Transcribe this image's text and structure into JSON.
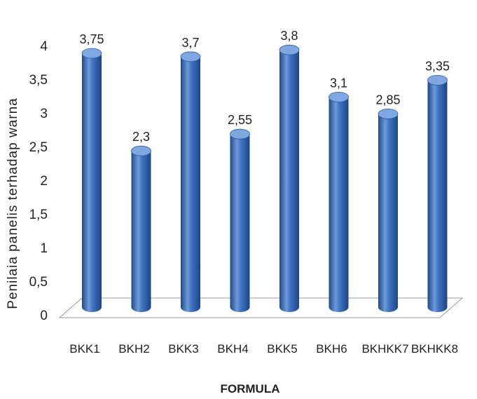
{
  "chart_data": {
    "type": "bar",
    "title": "",
    "xlabel": "FORMULA",
    "ylabel": "Penilaia panelis terhadap warna",
    "categories": [
      "BKK1",
      "BKH2",
      "BKK3",
      "BKH4",
      "BKK5",
      "BKH6",
      "BKHKK7",
      "BKHKK8"
    ],
    "values": [
      3.75,
      2.3,
      3.7,
      2.55,
      3.8,
      3.1,
      2.85,
      3.35
    ],
    "value_labels": [
      "3,75",
      "2,3",
      "3,7",
      "2,55",
      "3,8",
      "3,1",
      "2,85",
      "3,35"
    ],
    "ylim": [
      0,
      4
    ],
    "yticks": [
      0,
      0.5,
      1,
      1.5,
      2,
      2.5,
      3,
      3.5,
      4
    ],
    "ytick_labels": [
      "0",
      "0,5",
      "1",
      "1,5",
      "2",
      "2,5",
      "3",
      "3,5",
      "4"
    ],
    "grid": false,
    "bar_style": "3d-cylinder",
    "colors": {
      "bar": "#3a70bd",
      "bar_dark": "#1f4f94",
      "bar_light": "#7fa8e0"
    }
  }
}
